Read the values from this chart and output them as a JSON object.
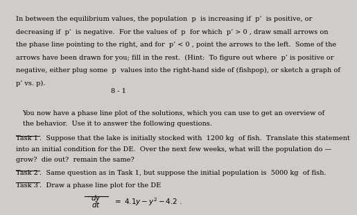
{
  "background_color": "#d0ccc8",
  "page1_bg": "#f5f2ee",
  "page2_bg": "#f0ede8",
  "page1_text_lines": [
    "In between the equilibrium values, the population  p  is increasing if  p’  is positive, or",
    "decreasing if  p’  is negative.  For the values of  p  for which  p’ > 0 , draw small arrows on",
    "the phase line pointing to the right, and for  p’ < 0 , point the arrows to the left.  Some of the",
    "arrows have been drawn for you; fill in the rest.  (Hint:  To figure out where  p’ is positive or",
    "negative, either plug some  p  values into the right-hand side of (fishpop), or sketch a graph of",
    "p’ vs. p)."
  ],
  "page_number": "8 - 1",
  "page2_intro_lines": [
    "You now have a phase line plot of the solutions, which you can use to get an overview of",
    "the behavior.  Use it to answer the following questions."
  ],
  "task1_label": "Task 1",
  "task1_text_lines": [
    ".  Suppose that the lake is initially stocked with  1200 kg  of fish.  Translate this statement",
    "into an initial condition for the DE.  Over the next few weeks, what will the population do —",
    "grow?  die out?  remain the same?"
  ],
  "task2_label": "Task 2",
  "task2_text": ".  Same question as in Task 1, but suppose the initial population is  5000 kg  of fish.",
  "task3_label": "Task 3",
  "task3_text": ".  Draw a phase line plot for the DE",
  "font_size_body": 7.0
}
